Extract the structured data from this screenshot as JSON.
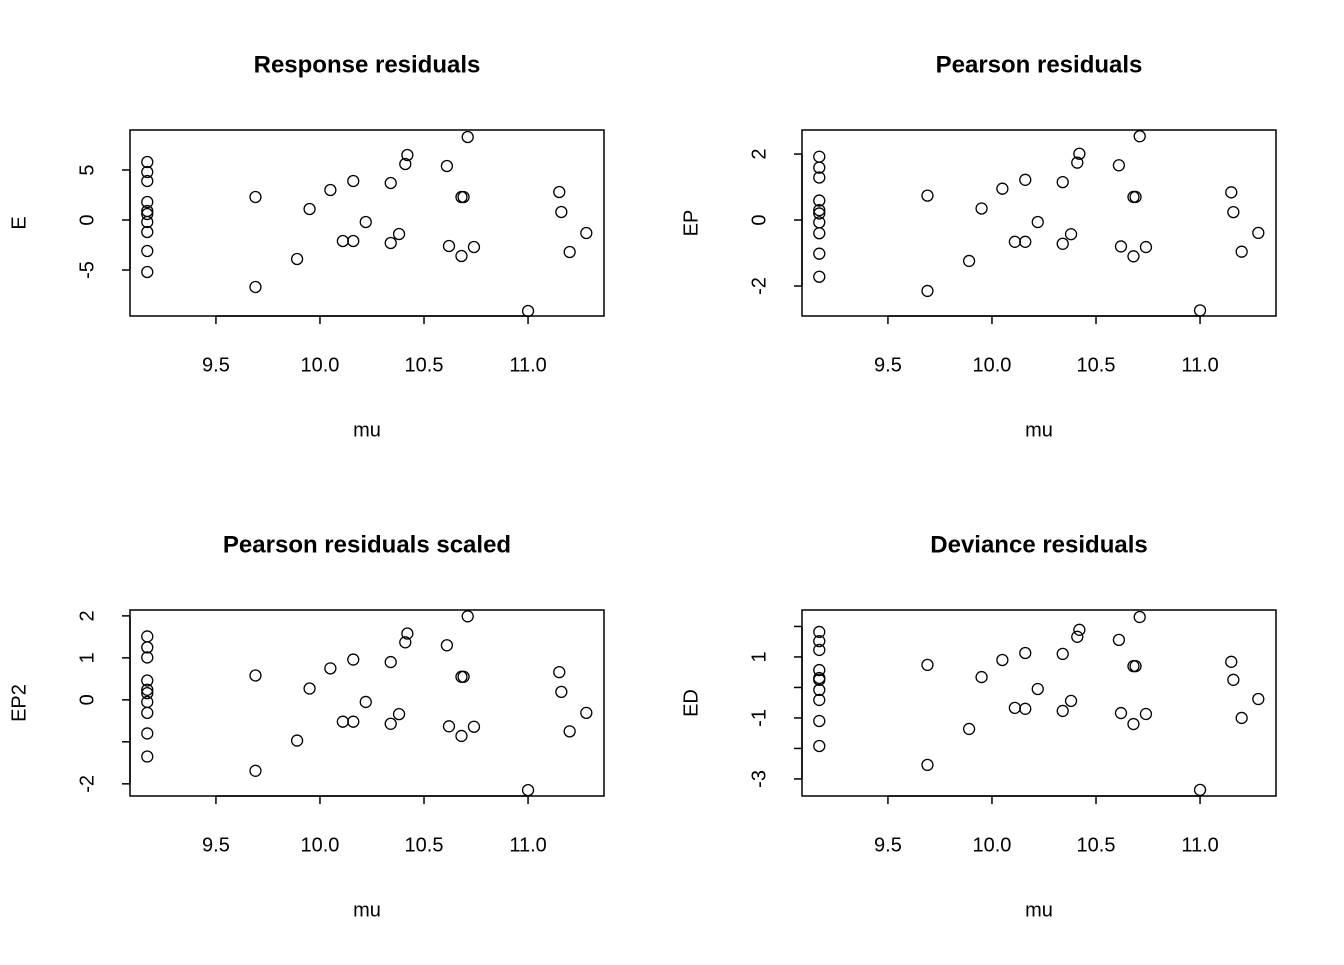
{
  "chart_data": [
    {
      "type": "scatter",
      "title": "Response residuals",
      "xlabel": "mu",
      "ylabel": "E",
      "x": [
        9.17,
        9.17,
        9.17,
        9.17,
        9.17,
        9.17,
        9.17,
        9.17,
        9.17,
        9.17,
        9.69,
        9.69,
        9.89,
        9.95,
        10.05,
        10.11,
        10.16,
        10.16,
        10.22,
        10.34,
        10.34,
        10.38,
        10.41,
        10.42,
        10.61,
        10.62,
        10.68,
        10.69,
        10.68,
        10.71,
        10.74,
        11.0,
        11.15,
        11.16,
        11.2,
        11.28
      ],
      "values": [
        5.8,
        4.8,
        3.9,
        1.8,
        0.9,
        0.6,
        -0.2,
        -1.2,
        -3.1,
        -5.2,
        2.3,
        -6.7,
        -3.9,
        1.1,
        3.0,
        -2.1,
        -2.1,
        3.9,
        -0.2,
        3.7,
        -2.3,
        -1.4,
        5.6,
        6.5,
        5.4,
        -2.6,
        2.3,
        2.3,
        -3.6,
        8.3,
        -2.7,
        -9.1,
        2.8,
        0.8,
        -3.2,
        -1.3
      ],
      "xlim": [
        9.087,
        11.365
      ],
      "ylim": [
        -9.6,
        9.0
      ],
      "xticks": [
        9.5,
        {
          "value": 10,
          "label": "10.0"
        },
        10.5,
        {
          "value": 11,
          "label": "11.0"
        }
      ],
      "yticks": [
        -5,
        0,
        5
      ]
    },
    {
      "type": "scatter",
      "title": "Pearson residuals",
      "xlabel": "mu",
      "ylabel": "EP",
      "x": [
        9.17,
        9.17,
        9.17,
        9.17,
        9.17,
        9.17,
        9.17,
        9.17,
        9.17,
        9.17,
        9.69,
        9.69,
        9.89,
        9.95,
        10.05,
        10.11,
        10.16,
        10.16,
        10.22,
        10.34,
        10.34,
        10.38,
        10.41,
        10.42,
        10.61,
        10.62,
        10.68,
        10.69,
        10.68,
        10.71,
        10.74,
        11.0,
        11.15,
        11.16,
        11.2,
        11.28
      ],
      "values": [
        1.92,
        1.59,
        1.29,
        0.59,
        0.3,
        0.2,
        -0.07,
        -0.4,
        -1.02,
        -1.72,
        0.74,
        -2.15,
        -1.24,
        0.35,
        0.95,
        -0.66,
        -0.66,
        1.22,
        -0.06,
        1.15,
        -0.72,
        -0.43,
        1.74,
        2.01,
        1.66,
        -0.8,
        0.7,
        0.7,
        -1.1,
        2.54,
        -0.82,
        -2.74,
        0.84,
        0.24,
        -0.96,
        -0.39
      ],
      "xlim": [
        9.087,
        11.365
      ],
      "ylim": [
        -2.91,
        2.73
      ],
      "xticks": [
        9.5,
        {
          "value": 10,
          "label": "10.0"
        },
        10.5,
        {
          "value": 11,
          "label": "11.0"
        }
      ],
      "yticks": [
        -2,
        0,
        2
      ]
    },
    {
      "type": "scatter",
      "title": "Pearson residuals scaled",
      "xlabel": "mu",
      "ylabel": "EP2",
      "x": [
        9.17,
        9.17,
        9.17,
        9.17,
        9.17,
        9.17,
        9.17,
        9.17,
        9.17,
        9.17,
        9.69,
        9.69,
        9.89,
        9.95,
        10.05,
        10.11,
        10.16,
        10.16,
        10.22,
        10.34,
        10.34,
        10.38,
        10.41,
        10.42,
        10.61,
        10.62,
        10.68,
        10.69,
        10.68,
        10.71,
        10.74,
        11.0,
        11.15,
        11.16,
        11.2,
        11.28
      ],
      "values": [
        1.51,
        1.25,
        1.01,
        0.46,
        0.24,
        0.16,
        -0.05,
        -0.31,
        -0.8,
        -1.35,
        0.58,
        -1.69,
        -0.97,
        0.27,
        0.75,
        -0.52,
        -0.52,
        0.96,
        -0.05,
        0.9,
        -0.57,
        -0.34,
        1.37,
        1.58,
        1.3,
        -0.63,
        0.55,
        0.55,
        -0.86,
        1.99,
        -0.64,
        -2.15,
        0.66,
        0.19,
        -0.75,
        -0.31
      ],
      "xlim": [
        9.087,
        11.365
      ],
      "ylim": [
        -2.29,
        2.14
      ],
      "xticks": [
        9.5,
        {
          "value": 10,
          "label": "10.0"
        },
        10.5,
        {
          "value": 11,
          "label": "11.0"
        }
      ],
      "yticks": [
        -2,
        {
          "value": -1,
          "label": null
        },
        0,
        1,
        2
      ]
    },
    {
      "type": "scatter",
      "title": "Deviance residuals",
      "xlabel": "mu",
      "ylabel": "ED",
      "x": [
        9.17,
        9.17,
        9.17,
        9.17,
        9.17,
        9.17,
        9.17,
        9.17,
        9.17,
        9.17,
        9.69,
        9.69,
        9.89,
        9.95,
        10.05,
        10.11,
        10.16,
        10.16,
        10.22,
        10.34,
        10.34,
        10.38,
        10.41,
        10.42,
        10.61,
        10.62,
        10.68,
        10.69,
        10.68,
        10.71,
        10.74,
        11.0,
        11.15,
        11.16,
        11.2,
        11.28
      ],
      "values": [
        1.82,
        1.52,
        1.23,
        0.57,
        0.31,
        0.25,
        -0.08,
        -0.41,
        -1.1,
        -1.92,
        0.74,
        -2.54,
        -1.36,
        0.34,
        0.9,
        -0.67,
        -0.7,
        1.13,
        -0.05,
        1.1,
        -0.77,
        -0.44,
        1.66,
        1.89,
        1.56,
        -0.84,
        0.7,
        0.7,
        -1.2,
        2.31,
        -0.87,
        -3.36,
        0.84,
        0.25,
        -1.0,
        -0.38
      ],
      "xlim": [
        9.087,
        11.365
      ],
      "ylim": [
        -3.56,
        2.54
      ],
      "xticks": [
        9.5,
        {
          "value": 10,
          "label": "10.0"
        },
        10.5,
        {
          "value": 11,
          "label": "11.0"
        }
      ],
      "yticks": [
        -3,
        {
          "value": -2,
          "label": null
        },
        -1,
        {
          "value": 0,
          "label": null
        },
        1,
        {
          "value": 2,
          "label": null
        }
      ]
    }
  ]
}
